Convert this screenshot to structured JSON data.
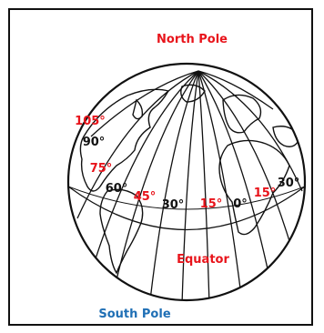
{
  "poles": {
    "north": "North Pole",
    "south": "South Pole"
  },
  "equator_label": "Equator",
  "longitude_labels": [
    {
      "text": "105°",
      "color": "#e8141b"
    },
    {
      "text": "90°",
      "color": "#111111"
    },
    {
      "text": "75°",
      "color": "#e8141b"
    },
    {
      "text": "60°",
      "color": "#111111"
    },
    {
      "text": "45°",
      "color": "#e8141b"
    },
    {
      "text": "30°",
      "color": "#111111"
    },
    {
      "text": "15°",
      "color": "#e8141b"
    },
    {
      "text": "0°",
      "color": "#111111"
    },
    {
      "text": "15°",
      "color": "#e8141b"
    },
    {
      "text": "30°",
      "color": "#111111"
    }
  ],
  "colors": {
    "north_pole": "#e8141b",
    "south_pole": "#1f6fb5",
    "equator": "#e8141b",
    "outline": "#111111"
  }
}
